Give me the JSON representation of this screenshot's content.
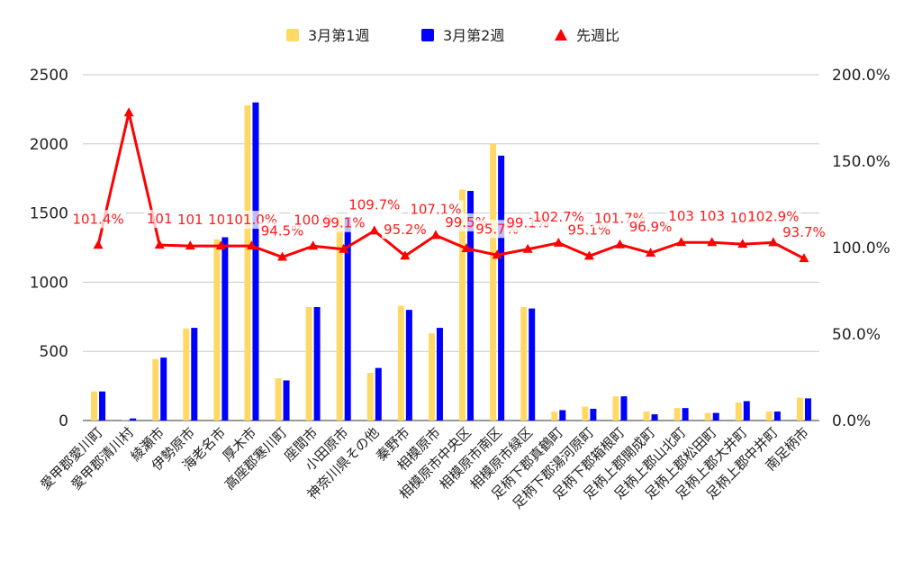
{
  "chart_data": {
    "type": "bar",
    "categories": [
      "愛甲郡愛川町",
      "愛甲郡清川村",
      "綾瀬市",
      "伊勢原市",
      "海老名市",
      "厚木市",
      "高座郡寒川町",
      "座間市",
      "小田原市",
      "神奈川県その他",
      "秦野市",
      "相模原市",
      "相模原市中央区",
      "相模原市南区",
      "相模原市緑区",
      "足柄下郡真鶴町",
      "足柄下郡湯河原町",
      "足柄下郡箱根町",
      "足柄上郡開成町",
      "足柄上郡山北町",
      "足柄上郡松田町",
      "足柄上郡大井町",
      "足柄上郡中井町",
      "南足柄市"
    ],
    "series": [
      {
        "name": "3月第1週",
        "type": "bar",
        "color": "#ffd966",
        "axis": "left",
        "values": [
          210,
          2,
          445,
          665,
          1310,
          2280,
          305,
          820,
          1480,
          345,
          830,
          630,
          1670,
          2000,
          820,
          65,
          100,
          175,
          65,
          90,
          55,
          130,
          65,
          165
        ]
      },
      {
        "name": "3月第2週",
        "type": "bar",
        "color": "#0000ff",
        "axis": "left",
        "values": [
          210,
          15,
          455,
          670,
          1325,
          2300,
          290,
          820,
          1470,
          380,
          800,
          670,
          1660,
          1915,
          810,
          75,
          85,
          175,
          45,
          90,
          55,
          140,
          65,
          160
        ]
      },
      {
        "name": "先週比",
        "type": "line",
        "color": "#ff0000",
        "axis": "right",
        "values": [
          101.4,
          178.0,
          101.5,
          101.0,
          101.0,
          101.0,
          94.5,
          100.9,
          99.1,
          109.7,
          95.2,
          107.1,
          99.5,
          95.7,
          99.1,
          102.7,
          95.1,
          101.7,
          96.9,
          103.0,
          103.0,
          102.0,
          102.9,
          93.7
        ],
        "labels": [
          "101.4%",
          "",
          "101",
          "101",
          "101",
          "101.0%",
          "94.5%",
          "100.9",
          "99.1%",
          "109.7%",
          "95.2%",
          "107.1%",
          "99.5%",
          "95.7%",
          "99.1%",
          "102.7%",
          "95.1%",
          "101.7%",
          "96.9%",
          "103",
          "103",
          "102",
          "102.9%",
          "93.7%"
        ]
      }
    ],
    "y_left": {
      "min": 0,
      "max": 2500,
      "ticks": [
        "0",
        "500",
        "1000",
        "1500",
        "2000",
        "2500"
      ]
    },
    "y_right": {
      "min": 0,
      "max": 200,
      "ticks": [
        "0.0%",
        "50.0%",
        "100.0%",
        "150.0%",
        "200.0%"
      ]
    },
    "legend_position": "top",
    "grid": true
  }
}
